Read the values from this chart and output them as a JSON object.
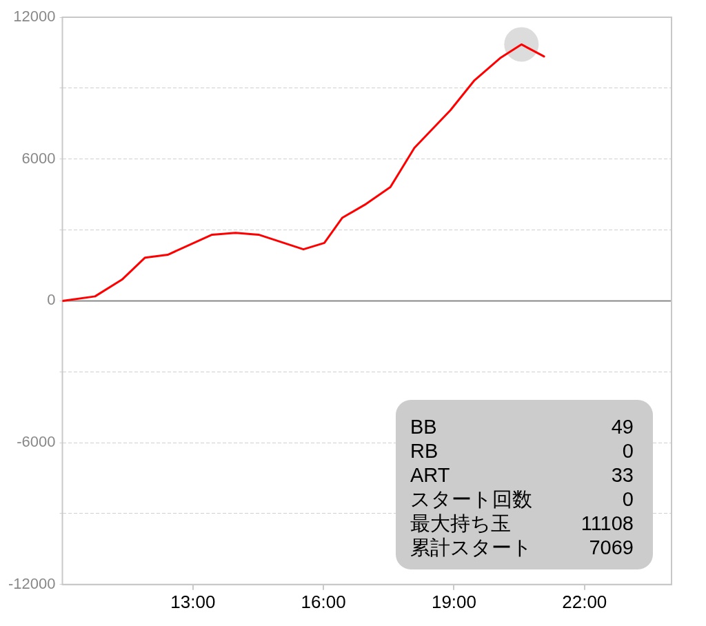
{
  "chart_data": {
    "type": "line",
    "x": [
      10.0,
      10.75,
      11.37,
      11.9,
      12.42,
      13.44,
      13.98,
      14.51,
      15.54,
      16.02,
      16.43,
      16.98,
      17.54,
      18.09,
      18.92,
      19.47,
      20.06,
      20.55,
      21.07
    ],
    "series": [
      {
        "color": "#ff0000",
        "values": [
          0,
          190,
          900,
          1830,
          1950,
          2800,
          2880,
          2800,
          2180,
          2450,
          3510,
          4100,
          4820,
          6470,
          8070,
          9330,
          10270,
          10850,
          10340
        ]
      },
      {
        "type": "scatter",
        "color": "#dcdcdc",
        "marker": "circle",
        "x": [
          20.55
        ],
        "values": [
          10850
        ]
      }
    ],
    "xlim": [
      10,
      24
    ],
    "xticks": [
      {
        "value": 13,
        "label": "13:00"
      },
      {
        "value": 16,
        "label": "16:00"
      },
      {
        "value": 19,
        "label": "19:00"
      },
      {
        "value": 22,
        "label": "22:00"
      }
    ],
    "ylim": [
      -12000,
      12000
    ],
    "yticks": [
      -12000,
      {
        "value": -9000,
        "label": null
      },
      -6000,
      {
        "value": -3000,
        "label": null
      },
      0,
      {
        "value": 3000,
        "label": null
      },
      6000,
      {
        "value": 9000,
        "label": null
      },
      12000
    ],
    "grid": "y",
    "ref_lines": [
      {
        "axis": "y",
        "value": 0,
        "color": "#8a8a8a"
      }
    ],
    "annotations": [
      "BB 49",
      "RB 0",
      "ART 33",
      "スタート回数 0",
      "最大持ち玉 11108",
      "累計スタート 7069"
    ]
  }
}
